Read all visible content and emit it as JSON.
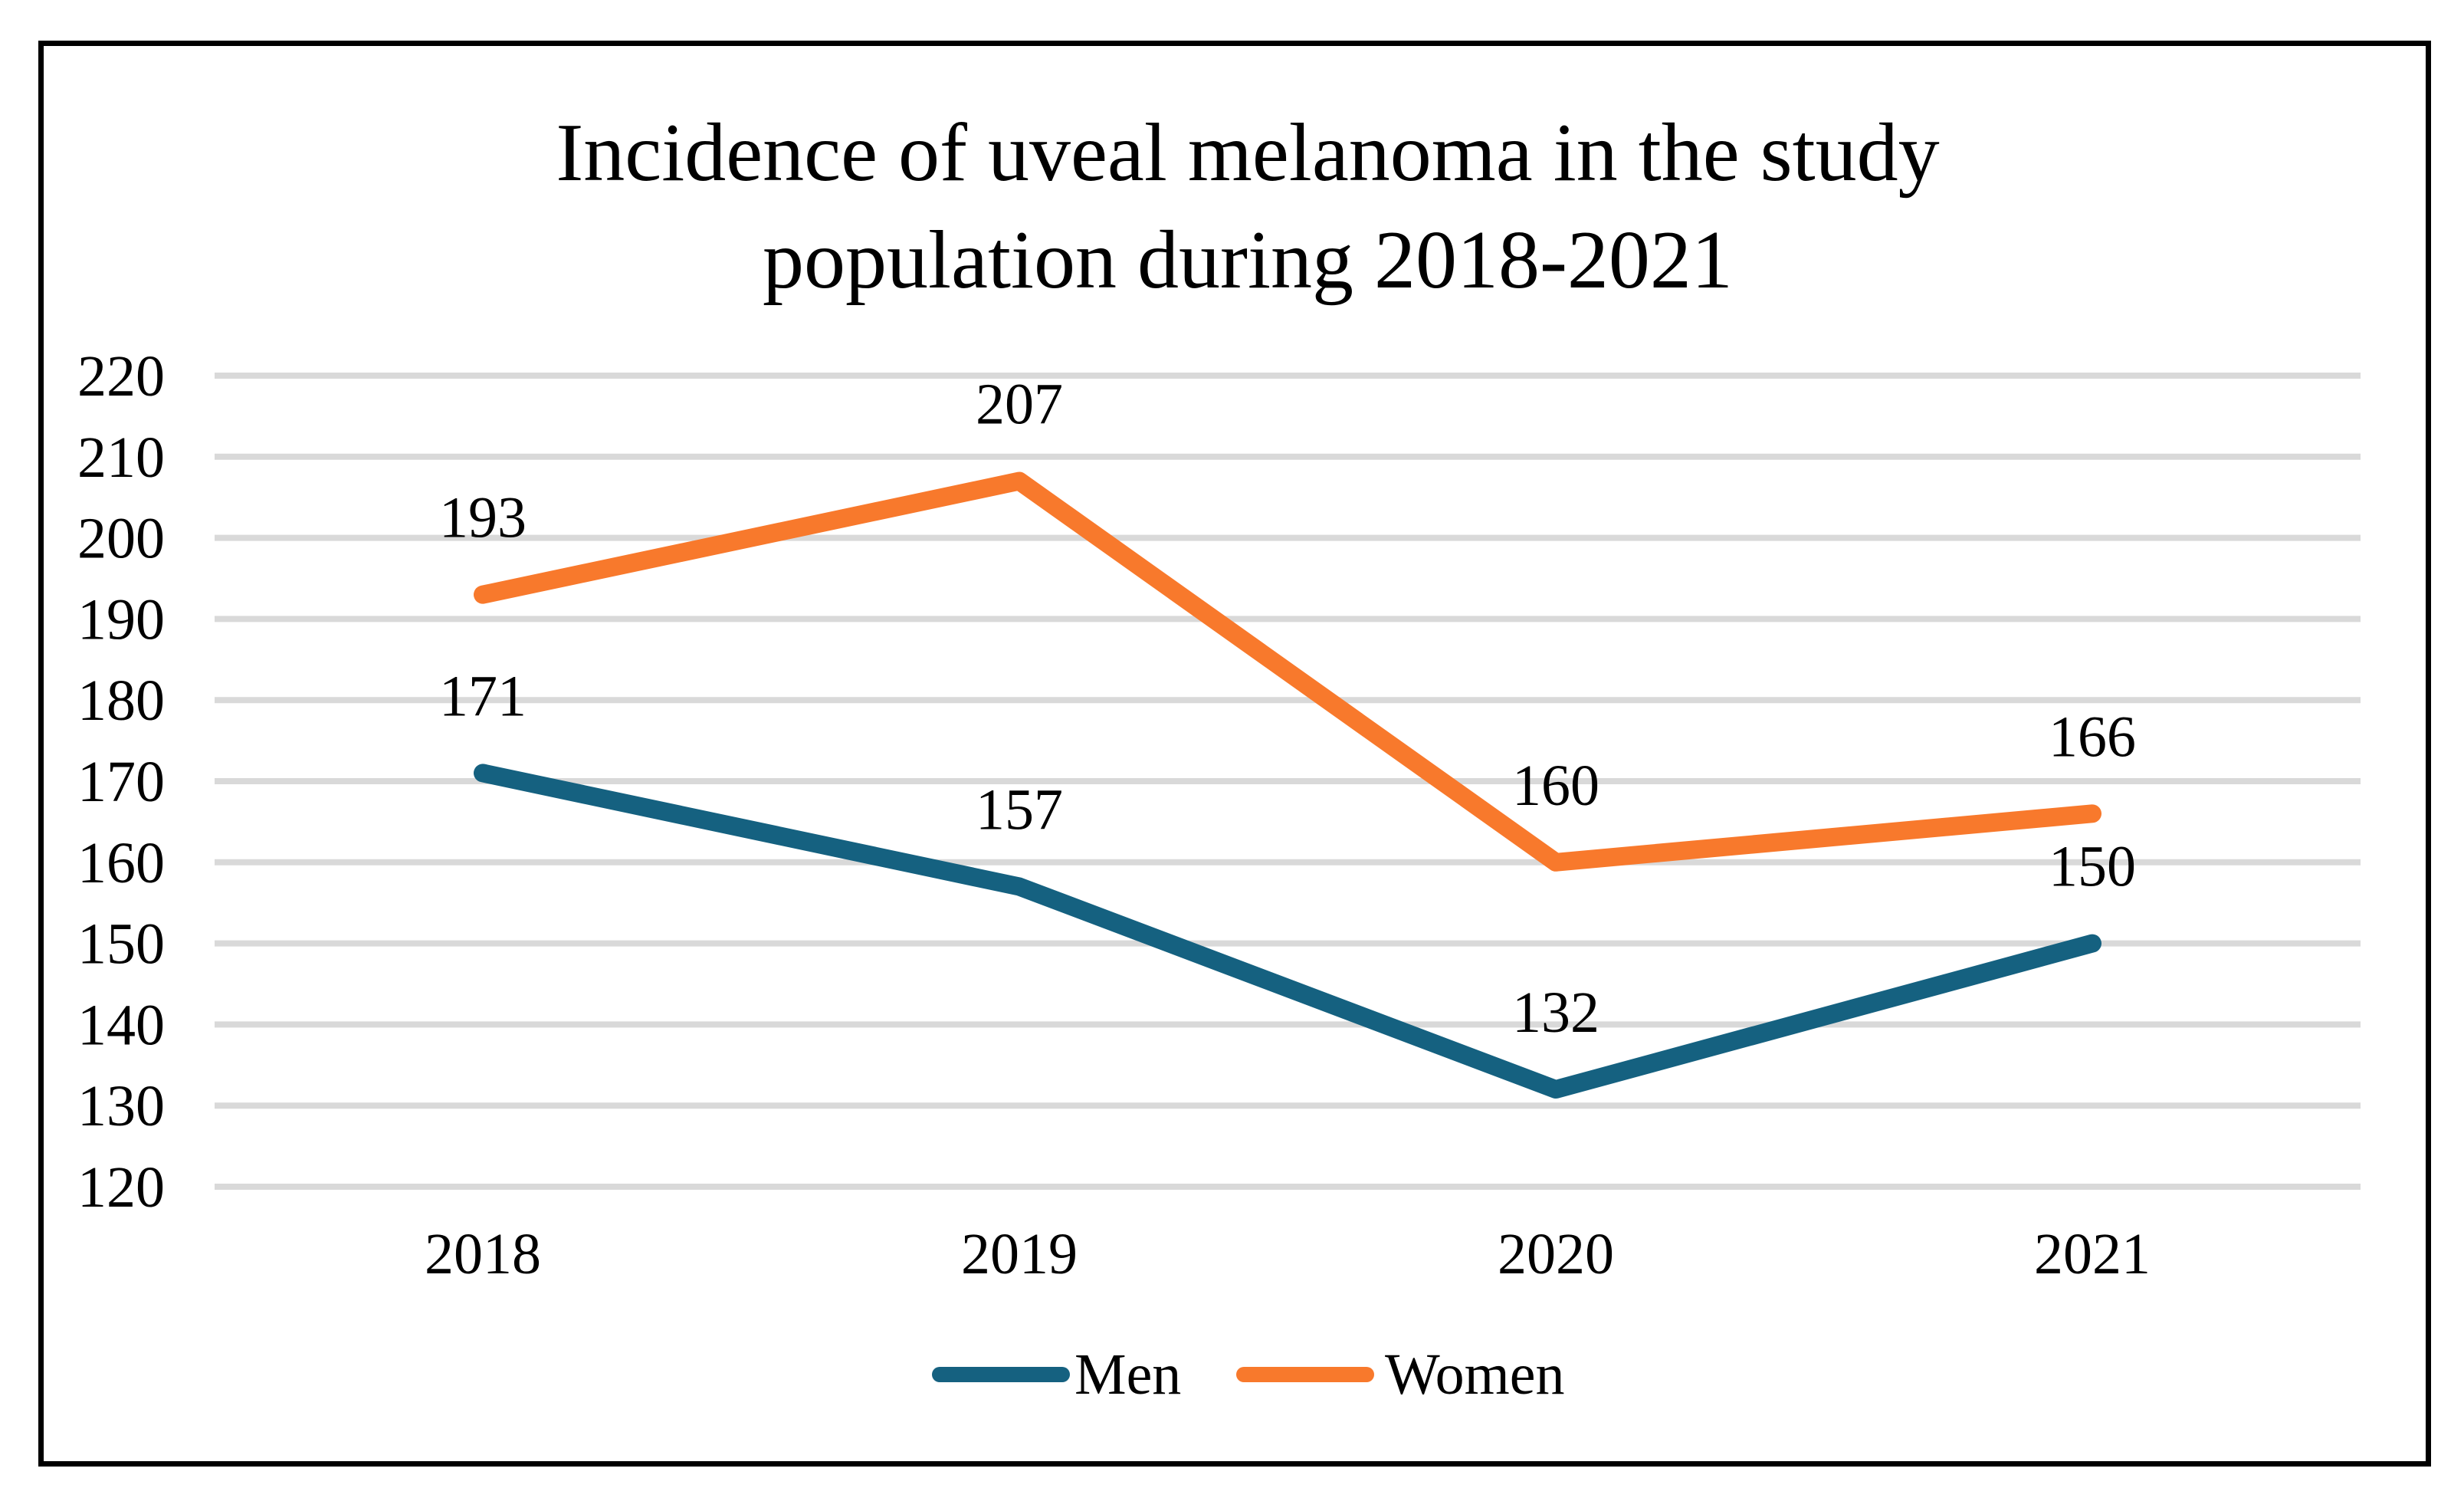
{
  "figure": {
    "title_lines": [
      "Incidence of uveal melanoma in the study",
      "population during 2018-2021"
    ]
  },
  "chart_data": {
    "type": "line",
    "title": "Incidence of uveal melanoma in the study population during 2018-2021",
    "categories": [
      "2018",
      "2019",
      "2020",
      "2021"
    ],
    "series": [
      {
        "name": "Men",
        "color": "#156180",
        "values": [
          171,
          157,
          132,
          150
        ]
      },
      {
        "name": "Women",
        "color": "#F8792C",
        "values": [
          193,
          207,
          160,
          166
        ]
      }
    ],
    "y_axis": {
      "min": 120,
      "max": 220,
      "step": 10,
      "tick_labels": [
        "220",
        "210",
        "200",
        "190",
        "180",
        "170",
        "160",
        "150",
        "140",
        "130",
        "120"
      ]
    },
    "xlabel": "",
    "ylabel": "",
    "grid": true,
    "gridline_color": "#D9D9D9",
    "text_color": "#000000",
    "data_labels": true,
    "legend_position": "bottom",
    "legend": [
      "Men",
      "Women"
    ]
  }
}
